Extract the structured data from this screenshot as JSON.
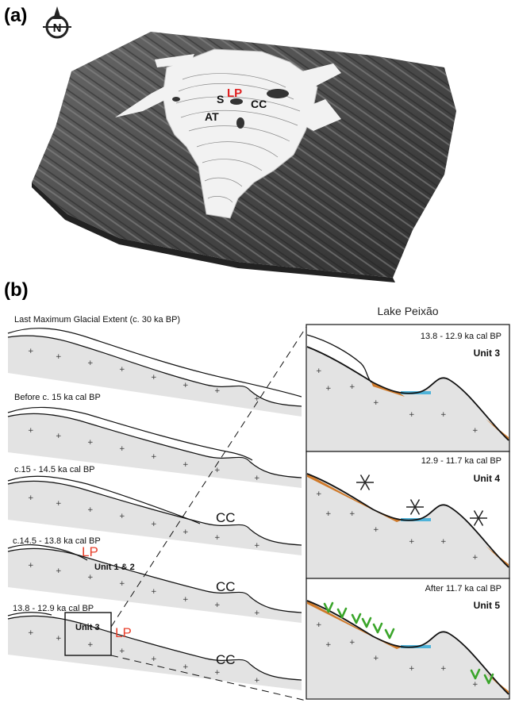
{
  "panel_a": {
    "label": "(a)",
    "north_letter": "N",
    "map_labels": {
      "lp": "LP",
      "s": "S",
      "cc": "CC",
      "at": "AT"
    }
  },
  "panel_b": {
    "label": "(b)",
    "inset_heading": "Lake Peixão",
    "profiles": [
      {
        "title": "Last Maximum Glacial Extent (c. 30 ka BP)"
      },
      {
        "title": "Before c. 15 ka cal BP"
      },
      {
        "title": "c.15 - 14.5 ka cal BP",
        "cc": "CC"
      },
      {
        "title": "c.14.5 - 13.8 ka cal BP",
        "lp": "LP",
        "unit": "Unit 1 & 2",
        "cc": "CC"
      },
      {
        "title": "13.8 - 12.9 ka cal BP",
        "lp": "LP",
        "unit": "Unit 3",
        "cc": "CC"
      }
    ],
    "insets": [
      {
        "date": "13.8 - 12.9 ka cal BP",
        "unit": "Unit 3"
      },
      {
        "date": "12.9 - 11.7 ka cal BP",
        "unit": "Unit 4"
      },
      {
        "date": "After 11.7 ka cal BP",
        "unit": "Unit 5"
      }
    ]
  },
  "colors": {
    "ice": "#f2f2f2",
    "terrain_dark": "#3a3a3a",
    "bedrock": "#e3e3e3",
    "sediment": "#d07a2a",
    "lake": "#4fb3d9",
    "vegetation": "#3aa52a",
    "label_red": "#e8402c"
  }
}
